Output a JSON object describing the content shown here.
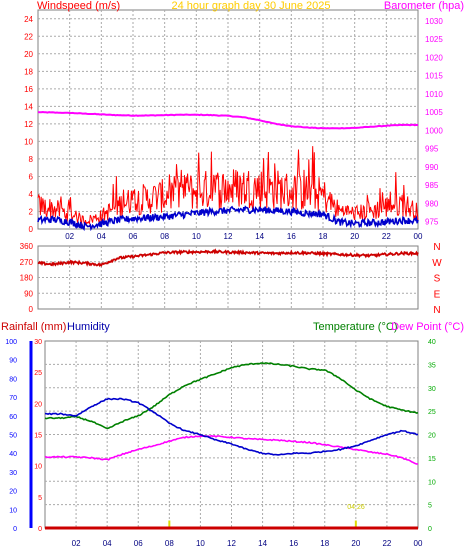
{
  "chart_data": [
    {
      "type": "line",
      "title": "24 hour graph day   30 June 2025",
      "left_axis_label": "Windspeed (m/s)",
      "right_axis_label": "Barometer (hpa)",
      "x_ticks": [
        "02",
        "04",
        "06",
        "08",
        "10",
        "12",
        "14",
        "16",
        "18",
        "20",
        "22",
        "00"
      ],
      "left_ticks": [
        0,
        2,
        4,
        6,
        8,
        10,
        12,
        14,
        16,
        18,
        20,
        22,
        24
      ],
      "right_ticks": [
        975,
        980,
        985,
        990,
        995,
        1000,
        1005,
        1010,
        1015,
        1020,
        1025,
        1030
      ],
      "left_range": [
        0,
        25
      ],
      "right_range": [
        973,
        1033
      ],
      "colors": {
        "gust": "#ff0000",
        "wind": "#0000cc",
        "barometer": "#ff00ff",
        "left_axis": "#ff0000",
        "right_axis": "#ff00ff",
        "title": "#ffcc00"
      },
      "series": [
        {
          "role": "gust",
          "axis": "left",
          "x": [
            0,
            1,
            2,
            3,
            4,
            5,
            6,
            7,
            8,
            9,
            10,
            11,
            12,
            13,
            14,
            15,
            16,
            17,
            18,
            19,
            20,
            21,
            22,
            23,
            24
          ],
          "values": [
            2.5,
            2.2,
            1.6,
            0.9,
            1.4,
            2.5,
            3.1,
            3.3,
            3.6,
            3.9,
            4.1,
            4.3,
            4.4,
            4.5,
            4.4,
            4.3,
            4.1,
            3.9,
            3.7,
            2.0,
            1.7,
            1.9,
            2.4,
            2.8,
            1.8
          ]
        },
        {
          "role": "wind",
          "axis": "left",
          "x": [
            0,
            1,
            2,
            3,
            4,
            5,
            6,
            7,
            8,
            9,
            10,
            11,
            12,
            13,
            14,
            15,
            16,
            17,
            18,
            19,
            20,
            21,
            22,
            23,
            24
          ],
          "values": [
            1.0,
            1.1,
            0.8,
            0.3,
            0.6,
            1.0,
            1.2,
            1.3,
            1.4,
            1.6,
            1.8,
            2.0,
            2.1,
            2.2,
            2.2,
            2.1,
            2.0,
            1.8,
            1.7,
            0.8,
            0.6,
            0.7,
            0.8,
            1.0,
            0.9
          ]
        },
        {
          "role": "barometer",
          "axis": "right",
          "x": [
            0,
            1,
            2,
            3,
            4,
            5,
            6,
            7,
            8,
            9,
            10,
            11,
            12,
            13,
            14,
            15,
            16,
            17,
            18,
            19,
            20,
            21,
            22,
            23,
            24
          ],
          "values": [
            1005.0,
            1004.9,
            1004.8,
            1004.6,
            1004.4,
            1004.2,
            1004.1,
            1004.1,
            1004.2,
            1004.3,
            1004.3,
            1004.2,
            1004.0,
            1003.6,
            1002.8,
            1001.8,
            1001.2,
            1000.8,
            1000.6,
            1000.6,
            1000.7,
            1001.0,
            1001.3,
            1001.5,
            1001.5
          ]
        }
      ]
    },
    {
      "type": "line",
      "left_ticks": [
        0,
        90,
        180,
        270,
        360
      ],
      "right_labels": [
        "N",
        "W",
        "S",
        "E",
        "N"
      ],
      "left_range": [
        0,
        360
      ],
      "colors": {
        "direction": "#cc0000",
        "axis": "#ff0000"
      },
      "series": [
        {
          "role": "direction",
          "axis": "left",
          "x": [
            0,
            1,
            2,
            3,
            4,
            5,
            6,
            7,
            8,
            9,
            10,
            11,
            12,
            13,
            14,
            15,
            16,
            17,
            18,
            19,
            20,
            21,
            22,
            23,
            24
          ],
          "values": [
            262,
            255,
            268,
            262,
            252,
            290,
            300,
            310,
            322,
            325,
            326,
            328,
            325,
            323,
            320,
            318,
            322,
            320,
            316,
            312,
            308,
            305,
            312,
            318,
            318
          ]
        }
      ]
    },
    {
      "type": "line",
      "rainfall_label": "Rainfall (mm)",
      "humidity_label": "Humidity",
      "temperature_label": "Temperature (°C)",
      "dewpoint_label": "Dew Point (°C)",
      "x_ticks": [
        "02",
        "04",
        "06",
        "08",
        "10",
        "12",
        "14",
        "16",
        "18",
        "20",
        "22",
        "00"
      ],
      "humidity_ticks": [
        0,
        10,
        20,
        30,
        40,
        50,
        60,
        70,
        80,
        90,
        100
      ],
      "rain_ticks": [
        0,
        5,
        10,
        15,
        20,
        25,
        30
      ],
      "temp_ticks": [
        0,
        5,
        10,
        15,
        20,
        25,
        30,
        35,
        40
      ],
      "humidity_range": [
        0,
        100
      ],
      "rain_range": [
        0,
        30
      ],
      "temp_range": [
        0,
        40
      ],
      "annotation": "04:26",
      "colors": {
        "humidity": "#0000cc",
        "temperature": "#008000",
        "dewpoint": "#ff00ff",
        "rainfall": "#cc0000",
        "rain_axis": "#ff0000",
        "humidity_axis": "#0000ff",
        "temp_axis": "#00aa00",
        "markers": "#dddd00"
      },
      "series": [
        {
          "role": "humidity",
          "axis": "humidity",
          "x": [
            0,
            1,
            2,
            3,
            4,
            5,
            6,
            7,
            8,
            9,
            10,
            11,
            12,
            13,
            14,
            15,
            16,
            17,
            18,
            19,
            20,
            21,
            22,
            23,
            24
          ],
          "values": [
            61,
            61,
            60,
            65,
            69,
            69,
            67,
            62,
            56,
            52,
            50,
            47,
            45,
            42,
            40,
            39,
            40,
            40,
            41,
            42,
            44,
            47,
            50,
            52,
            50
          ]
        },
        {
          "role": "temperature",
          "axis": "temp",
          "x": [
            0,
            1,
            2,
            3,
            4,
            5,
            6,
            7,
            8,
            9,
            10,
            11,
            12,
            13,
            14,
            15,
            16,
            17,
            18,
            19,
            20,
            21,
            22,
            23,
            24
          ],
          "values": [
            23.5,
            23.5,
            23.8,
            22.8,
            21.2,
            22.8,
            24.0,
            26.0,
            28.5,
            30.5,
            31.8,
            33.0,
            34.3,
            35.0,
            35.3,
            35.0,
            34.6,
            34.0,
            33.8,
            32.0,
            29.5,
            27.5,
            26.0,
            25.2,
            24.6
          ]
        },
        {
          "role": "dewpoint",
          "axis": "temp",
          "x": [
            0,
            1,
            2,
            3,
            4,
            5,
            6,
            7,
            8,
            9,
            10,
            11,
            12,
            13,
            14,
            15,
            16,
            17,
            18,
            19,
            20,
            21,
            22,
            23,
            24
          ],
          "values": [
            15.2,
            15.2,
            15.2,
            15.0,
            14.6,
            15.8,
            16.8,
            17.6,
            18.6,
            19.4,
            19.7,
            19.6,
            19.4,
            19.1,
            18.9,
            18.8,
            18.5,
            18.3,
            17.8,
            17.3,
            16.8,
            16.2,
            15.8,
            15.0,
            13.6
          ]
        },
        {
          "role": "rainfall",
          "axis": "rain",
          "x": [
            0,
            24
          ],
          "values": [
            0,
            0
          ]
        }
      ],
      "markers": [
        {
          "x": 8,
          "axis": "humidity",
          "value": 4
        },
        {
          "x": 20,
          "axis": "humidity",
          "value": 4
        }
      ]
    }
  ]
}
